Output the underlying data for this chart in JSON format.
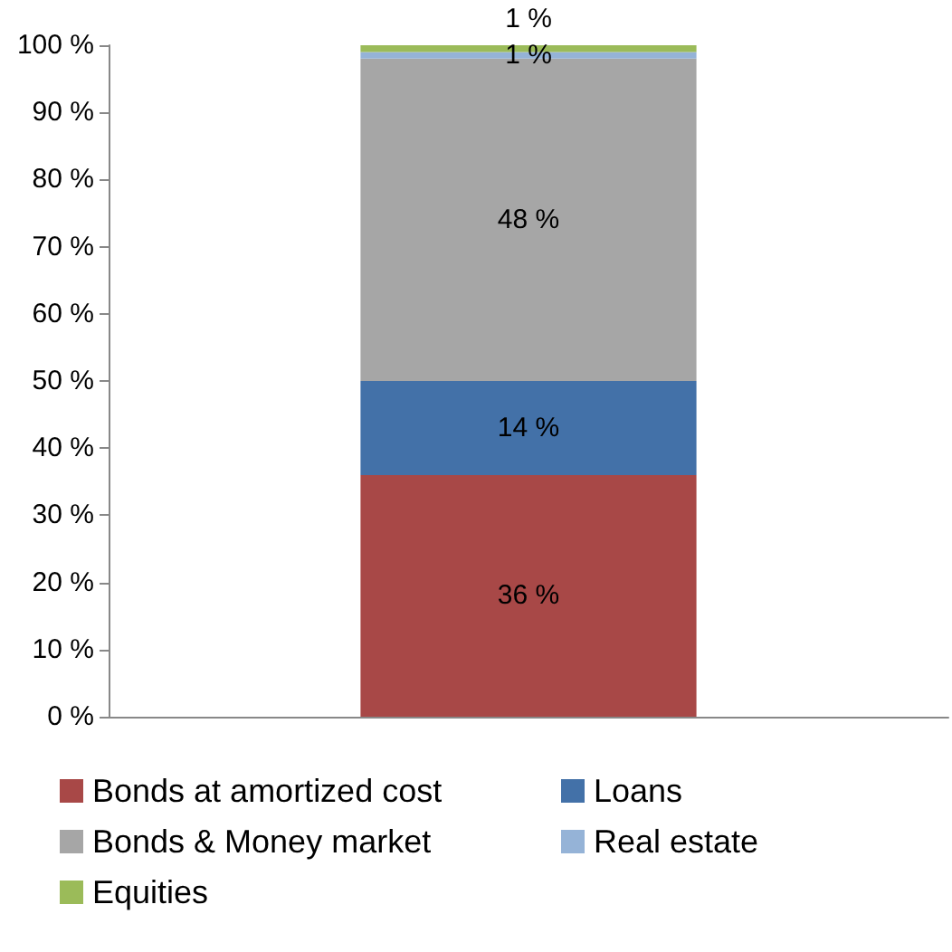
{
  "chart_data": {
    "type": "bar",
    "stacked": true,
    "categories": [
      null
    ],
    "series": [
      {
        "name": "Bonds at amortized cost",
        "color": "#a84847",
        "values": [
          36
        ],
        "value_labels": [
          "36 %"
        ]
      },
      {
        "name": "Loans",
        "color": "#4371a8",
        "values": [
          14
        ],
        "value_labels": [
          "14 %"
        ]
      },
      {
        "name": "Bonds & Money market",
        "color": "#a6a6a6",
        "values": [
          48
        ],
        "value_labels": [
          "48 %"
        ]
      },
      {
        "name": "Real estate",
        "color": "#95b3d7",
        "values": [
          1
        ],
        "value_labels": [
          "1 %"
        ]
      },
      {
        "name": "Equities",
        "color": "#9bbb59",
        "values": [
          1
        ],
        "value_labels": [
          "1 %"
        ]
      }
    ],
    "ylim": [
      0,
      100
    ],
    "yticks": [
      {
        "value": 0,
        "label": "0 %"
      },
      {
        "value": 10,
        "label": "10 %"
      },
      {
        "value": 20,
        "label": "20 %"
      },
      {
        "value": 30,
        "label": "30 %"
      },
      {
        "value": 40,
        "label": "40 %"
      },
      {
        "value": 50,
        "label": "50 %"
      },
      {
        "value": 60,
        "label": "60 %"
      },
      {
        "value": 70,
        "label": "70 %"
      },
      {
        "value": 80,
        "label": "80 %"
      },
      {
        "value": 90,
        "label": "90 %"
      },
      {
        "value": 100,
        "label": "100 %"
      }
    ],
    "grid": false,
    "legend": "bottom"
  }
}
